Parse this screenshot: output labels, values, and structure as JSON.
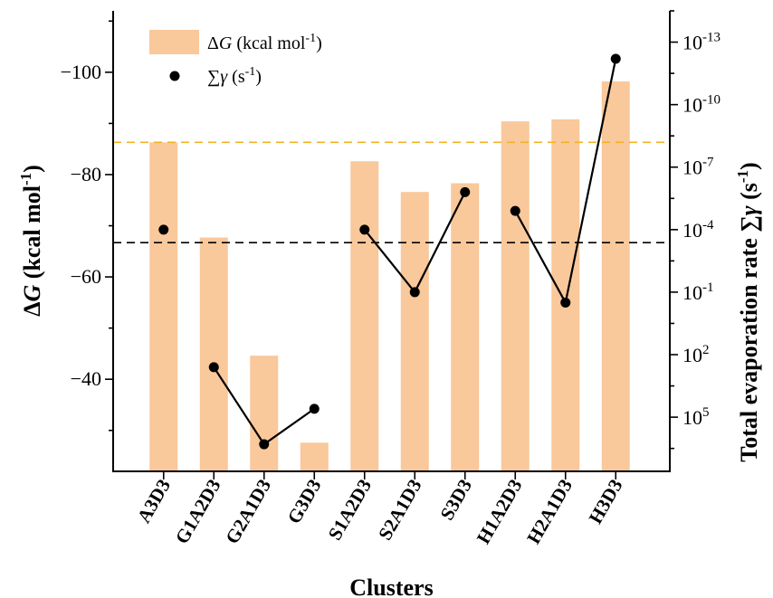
{
  "chart_data": {
    "type": "bar",
    "xlabel": "Clusters",
    "categories": [
      "A3D3",
      "G1A2D3",
      "G2A1D3",
      "G3D3",
      "S1A2D3",
      "S2A1D3",
      "S3D3",
      "H1A2D3",
      "H2A1D3",
      "H3D3"
    ],
    "series": [
      {
        "name": "ΔG (kcal mol-1)",
        "axis": "left",
        "mark": "bar",
        "values": [
          -86.3,
          -67.7,
          -44.6,
          -27.6,
          -82.6,
          -76.6,
          -78.3,
          -90.4,
          -90.8,
          -98.2
        ]
      },
      {
        "name": "∑γ (s-1)",
        "axis": "right",
        "mark": "line+marker",
        "segments": [
          [
            0
          ],
          [
            1,
            2,
            3
          ],
          [
            4,
            5,
            6
          ],
          [
            7,
            8,
            9
          ]
        ],
        "log10_values": [
          -4.0,
          2.6,
          6.3,
          4.6,
          -4.0,
          -1.0,
          -5.8,
          -4.9,
          -0.5,
          -12.2
        ]
      }
    ],
    "left_axis": {
      "label": "ΔG (kcal mol-1)",
      "ylim": [
        -22,
        -112
      ],
      "ticks": [
        -40,
        -60,
        -80,
        -100
      ],
      "tick_labels": [
        "−40",
        "−60",
        "−80",
        "−100"
      ]
    },
    "right_axis": {
      "label": "Total evaporation rate ∑γ (s-1)",
      "scale": "log",
      "log10_range": [
        7.6,
        -14.5
      ],
      "ticks_log10": [
        5,
        2,
        -1,
        -4,
        -7,
        -10,
        -13
      ],
      "tick_labels": [
        "10^5",
        "10^2",
        "10^-1",
        "10^-4",
        "10^-7",
        "10^-10",
        "10^-13"
      ]
    },
    "reference_lines": [
      {
        "axis": "left",
        "value": -86.3,
        "color": "#F0B323",
        "style": "dashed"
      },
      {
        "axis": "left",
        "value": -66.7,
        "color": "#000000",
        "style": "dashed"
      }
    ],
    "colors": {
      "bar": "#F9C89B",
      "line": "#000000"
    },
    "legend": {
      "placement": "top-left"
    }
  }
}
